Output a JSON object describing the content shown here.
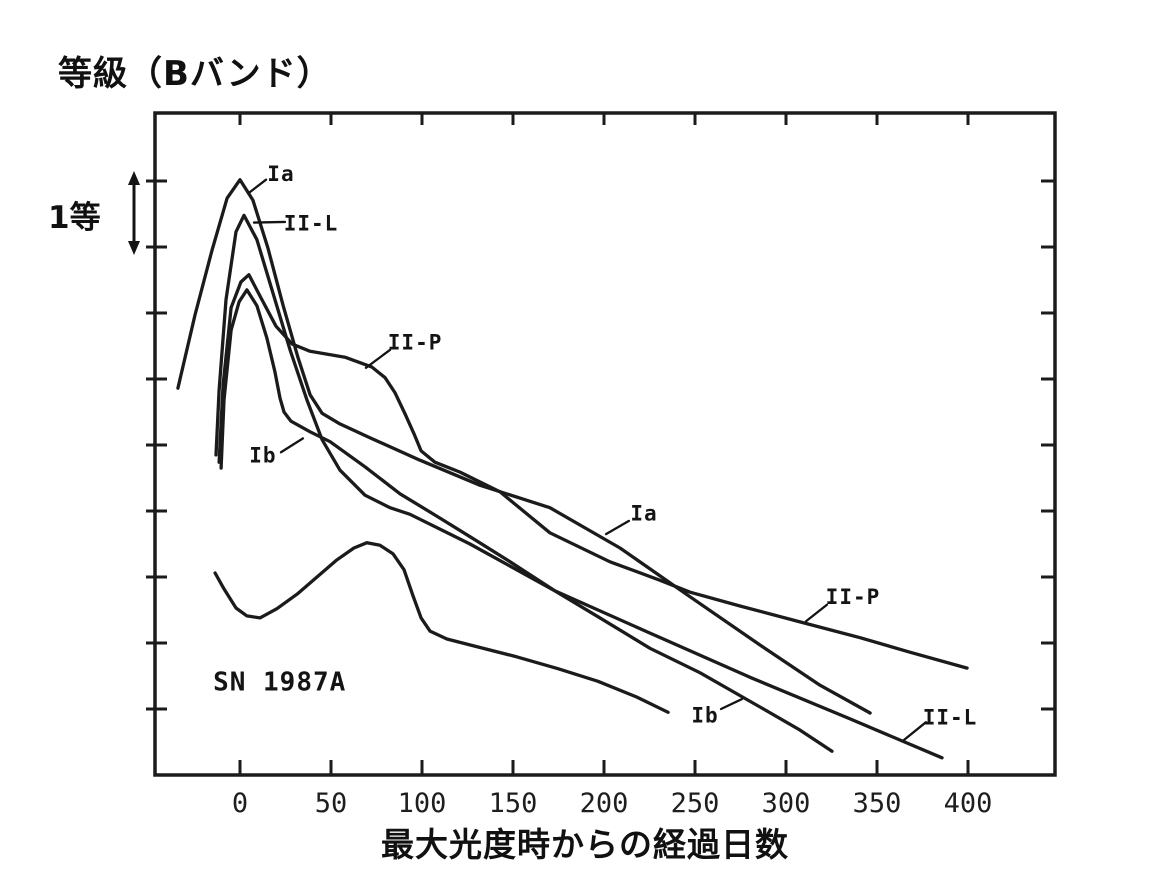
{
  "figure": {
    "y_axis_title": "等級（Bバンド）",
    "x_axis_title": "最大光度時からの経過日数",
    "magnitude_scale": {
      "label": "1等",
      "span_mag": 1
    }
  },
  "chart_data": {
    "type": "line",
    "title": "",
    "xlabel": "最大光度時からの経過日数",
    "ylabel": "等級（Bバンド）",
    "x_unit": "days since maximum light",
    "y_unit": "relative B magnitude (1 tick = 1 mag, fainter downward)",
    "xlim": [
      -47,
      448
    ],
    "ylim_mag_below_top": [
      0,
      10
    ],
    "x_ticks": [
      0,
      50,
      100,
      150,
      200,
      250,
      300,
      350,
      400
    ],
    "y_tick_step_mag": 1,
    "grid": false,
    "legend_position": "inline-annotations",
    "line_color": "#1b1b1b",
    "background": "#ffffff",
    "series": [
      {
        "name": "Ia",
        "points": [
          [
            -34.1,
            4.14
          ],
          [
            -24.7,
            3.03
          ],
          [
            -15.4,
            2.05
          ],
          [
            -7.1,
            1.26
          ],
          [
            0,
            0.98
          ],
          [
            7.1,
            1.29
          ],
          [
            15.4,
            2.02
          ],
          [
            23.6,
            2.88
          ],
          [
            31.9,
            3.68
          ],
          [
            38.5,
            4.24
          ],
          [
            45.1,
            4.52
          ],
          [
            54.9,
            4.68
          ],
          [
            71.4,
            4.89
          ],
          [
            98.9,
            5.23
          ],
          [
            131.9,
            5.61
          ],
          [
            170.3,
            5.95
          ],
          [
            208.8,
            6.56
          ],
          [
            247.3,
            7.3
          ],
          [
            285.7,
            8.03
          ],
          [
            318.7,
            8.64
          ],
          [
            346.2,
            9.06
          ]
        ]
      },
      {
        "name": "II-L",
        "points": [
          [
            -13.2,
            5.15
          ],
          [
            -11.5,
            4.17
          ],
          [
            -7.7,
            2.8
          ],
          [
            -2.2,
            1.77
          ],
          [
            2.2,
            1.52
          ],
          [
            9.3,
            1.89
          ],
          [
            17.6,
            2.65
          ],
          [
            27.5,
            3.56
          ],
          [
            36.8,
            4.32
          ],
          [
            45.1,
            4.92
          ],
          [
            54.9,
            5.38
          ],
          [
            68.7,
            5.76
          ],
          [
            82.4,
            5.95
          ],
          [
            93.4,
            6.05
          ],
          [
            126.4,
            6.5
          ],
          [
            173.1,
            7.21
          ],
          [
            225.3,
            7.85
          ],
          [
            280.2,
            8.52
          ],
          [
            335.2,
            9.15
          ],
          [
            385.7,
            9.74
          ]
        ]
      },
      {
        "name": "II-P",
        "points": [
          [
            -11.5,
            5.26
          ],
          [
            -9.3,
            4.09
          ],
          [
            -4.9,
            2.92
          ],
          [
            0.5,
            2.53
          ],
          [
            4.9,
            2.42
          ],
          [
            11.5,
            2.77
          ],
          [
            19.8,
            3.2
          ],
          [
            28.6,
            3.47
          ],
          [
            38.5,
            3.58
          ],
          [
            57.7,
            3.67
          ],
          [
            72.5,
            3.82
          ],
          [
            79.7,
            3.98
          ],
          [
            85.2,
            4.21
          ],
          [
            90.7,
            4.53
          ],
          [
            95.6,
            4.83
          ],
          [
            99.5,
            5.09
          ],
          [
            107.1,
            5.26
          ],
          [
            120.9,
            5.41
          ],
          [
            142.9,
            5.71
          ],
          [
            170.3,
            6.33
          ],
          [
            203.3,
            6.77
          ],
          [
            230.8,
            7.05
          ],
          [
            247.3,
            7.23
          ],
          [
            274.7,
            7.44
          ],
          [
            307.7,
            7.68
          ],
          [
            340.7,
            7.92
          ],
          [
            368.1,
            8.14
          ],
          [
            399.5,
            8.38
          ]
        ]
      },
      {
        "name": "Ib",
        "points": [
          [
            -10.4,
            5.35
          ],
          [
            -8.8,
            4.32
          ],
          [
            -4.9,
            3.26
          ],
          [
            -0.5,
            2.83
          ],
          [
            3.8,
            2.65
          ],
          [
            9.3,
            2.89
          ],
          [
            14.8,
            3.38
          ],
          [
            19.2,
            3.89
          ],
          [
            22,
            4.29
          ],
          [
            24.2,
            4.5
          ],
          [
            28,
            4.64
          ],
          [
            38.5,
            4.8
          ],
          [
            49.5,
            4.95
          ],
          [
            68.7,
            5.33
          ],
          [
            87.9,
            5.74
          ],
          [
            107.1,
            6.06
          ],
          [
            126.4,
            6.39
          ],
          [
            148.4,
            6.77
          ],
          [
            173.1,
            7.21
          ],
          [
            197.8,
            7.62
          ],
          [
            225.3,
            8.08
          ],
          [
            252.7,
            8.45
          ],
          [
            285.7,
            8.97
          ],
          [
            307.7,
            9.32
          ],
          [
            325.3,
            9.64
          ]
        ]
      },
      {
        "name": "SN 1987A",
        "points": [
          [
            -13.7,
            6.94
          ],
          [
            -8.8,
            7.18
          ],
          [
            -2.2,
            7.47
          ],
          [
            3.8,
            7.59
          ],
          [
            11,
            7.62
          ],
          [
            20.3,
            7.48
          ],
          [
            31.3,
            7.26
          ],
          [
            42.3,
            7.0
          ],
          [
            53.3,
            6.74
          ],
          [
            62.6,
            6.56
          ],
          [
            69.8,
            6.48
          ],
          [
            76.9,
            6.52
          ],
          [
            84.1,
            6.65
          ],
          [
            90.1,
            6.89
          ],
          [
            95.1,
            7.29
          ],
          [
            99.5,
            7.62
          ],
          [
            104.4,
            7.82
          ],
          [
            113.7,
            7.94
          ],
          [
            130.8,
            8.06
          ],
          [
            152.2,
            8.21
          ],
          [
            174.7,
            8.39
          ],
          [
            196.7,
            8.58
          ],
          [
            218.1,
            8.82
          ],
          [
            235.2,
            9.05
          ]
        ]
      }
    ],
    "annotations": [
      {
        "text": "Ia",
        "day": 22.5,
        "mag": 0.89,
        "anchor": "middle",
        "size": 21,
        "leader": [
          [
            14.3,
            0.98
          ],
          [
            4.9,
            1.18
          ]
        ]
      },
      {
        "text": "II-L",
        "day": 39.0,
        "mag": 1.64,
        "anchor": "middle",
        "size": 21,
        "leader": [
          [
            24.7,
            1.62
          ],
          [
            7.7,
            1.63
          ]
        ]
      },
      {
        "text": "II-P",
        "day": 96.2,
        "mag": 3.44,
        "anchor": "middle",
        "size": 21,
        "leader": [
          [
            82.4,
            3.56
          ],
          [
            69.2,
            3.83
          ]
        ]
      },
      {
        "text": "Ib",
        "day": 12.6,
        "mag": 5.15,
        "anchor": "middle",
        "size": 21,
        "leader": [
          [
            22.5,
            5.11
          ],
          [
            34.6,
            4.9
          ]
        ]
      },
      {
        "text": "Ia",
        "day": 222.0,
        "mag": 6.03,
        "anchor": "middle",
        "size": 21,
        "leader": [
          [
            213.7,
            6.15
          ],
          [
            201.1,
            6.35
          ]
        ]
      },
      {
        "text": "II-P",
        "day": 336.8,
        "mag": 7.3,
        "anchor": "middle",
        "size": 21,
        "leader": [
          [
            322.5,
            7.42
          ],
          [
            311.0,
            7.67
          ]
        ]
      },
      {
        "text": "Ib",
        "day": 255.5,
        "mag": 9.09,
        "anchor": "middle",
        "size": 21,
        "leader": [
          [
            264.3,
            9.0
          ],
          [
            275.8,
            8.85
          ]
        ]
      },
      {
        "text": "II-L",
        "day": 390.1,
        "mag": 9.12,
        "anchor": "middle",
        "size": 21,
        "leader": [
          [
            376.9,
            9.2
          ],
          [
            364.8,
            9.47
          ]
        ]
      },
      {
        "text": "SN 1987A",
        "day": -14.8,
        "mag": 8.58,
        "anchor": "start",
        "size": 26,
        "leader": null
      }
    ]
  }
}
